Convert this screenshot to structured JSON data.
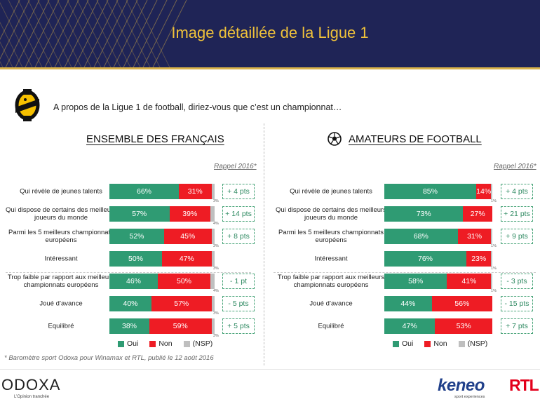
{
  "header": {
    "title": "Image détaillée de la Ligue 1"
  },
  "question": "A propos de la Ligue 1 de football, diriez-vous que c’est un championnat…",
  "rappel": "Rappel 2016*",
  "colors": {
    "oui": "#2f9b73",
    "non": "#ee1c24",
    "nsp": "#bfbfbf",
    "header": "#1f2456",
    "title": "#f0c23a"
  },
  "legend": {
    "oui": "Oui",
    "non": "Non",
    "nsp": "(NSP)"
  },
  "source": "* Baromètre sport Odoxa pour Winamax et RTL, publié le 12 août 2016",
  "footer": {
    "odoxa": "ODOXA",
    "odoxa_tagline": "L’Opinion tranchée",
    "keneo": "keneo",
    "keneo_sub": "sport experiences",
    "rtl": "RTL"
  },
  "chart_data": [
    {
      "type": "bar",
      "title": "ENSEMBLE DES FRANÇAIS",
      "categories": [
        "Qui révèle de jeunes talents",
        "Qui dispose de certains des meilleurs joueurs du monde",
        "Parmi les 5 meilleurs championnats européens",
        "Intéressant",
        "Trop faible par rapport aux meilleurs championnats européens",
        "Joué d’avance",
        "Equilibré"
      ],
      "series": [
        {
          "name": "Oui",
          "values": [
            66,
            57,
            52,
            50,
            46,
            40,
            38
          ]
        },
        {
          "name": "Non",
          "values": [
            31,
            39,
            45,
            47,
            50,
            57,
            59
          ]
        },
        {
          "name": "(NSP)",
          "values": [
            3,
            4,
            3,
            3,
            4,
            3,
            3
          ]
        }
      ],
      "deltas": [
        "+ 4 pts",
        "+ 14 pts",
        "+ 8 pts",
        "",
        "- 1 pt",
        "- 5 pts",
        "+ 5 pts"
      ]
    },
    {
      "type": "bar",
      "title": "AMATEURS DE FOOTBALL",
      "categories": [
        "Qui révèle de jeunes talents",
        "Qui dispose de certains des meilleurs joueurs du monde",
        "Parmi les 5 meilleurs championnats européens",
        "Intéressant",
        "Trop faible par rapport aux meilleurs championnats européens",
        "Joué d’avance",
        "Equilibré"
      ],
      "series": [
        {
          "name": "Oui",
          "values": [
            85,
            73,
            68,
            76,
            58,
            44,
            47
          ]
        },
        {
          "name": "Non",
          "values": [
            14,
            27,
            31,
            23,
            41,
            56,
            53
          ]
        },
        {
          "name": "(NSP)",
          "values": [
            1,
            0,
            1,
            1,
            1,
            0,
            0
          ]
        }
      ],
      "deltas": [
        "+ 4 pts",
        "+ 21 pts",
        "+ 9 pts",
        "",
        "- 3 pts",
        "- 15 pts",
        "+ 7 pts"
      ]
    }
  ]
}
